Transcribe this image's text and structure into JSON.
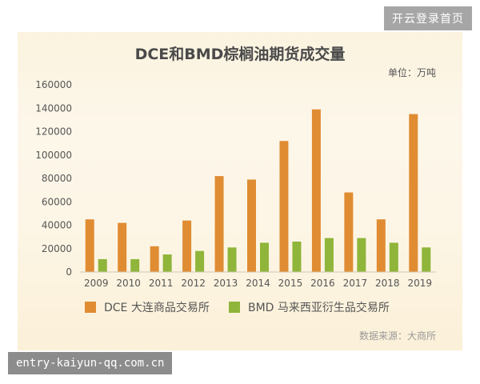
{
  "top_link": "开云登录首页",
  "watermark": "entry-kaiyun-qq.com.cn",
  "unit_label": "单位：万吨",
  "source_label": "数据来源：大商所",
  "colors": {
    "dce": "#e08c33",
    "bmd": "#8fb53a",
    "axis_text": "#555555",
    "title": "#4a4a4a"
  },
  "chart_data": {
    "type": "bar",
    "title": "DCE和BMD棕榈油期货成交量",
    "categories": [
      "2009",
      "2010",
      "2011",
      "2012",
      "2013",
      "2014",
      "2015",
      "2016",
      "2017",
      "2018",
      "2019"
    ],
    "ylim": [
      0,
      160000
    ],
    "yticks": [
      "0",
      "20000",
      "40000",
      "60000",
      "80000",
      "100000",
      "120000",
      "140000",
      "160000"
    ],
    "series": [
      {
        "name": "DCE 大连商品交易所",
        "values": [
          45000,
          42000,
          22000,
          44000,
          82000,
          79000,
          112000,
          139000,
          68000,
          45000,
          135000
        ]
      },
      {
        "name": "BMD 马来西亚衍生品交易所",
        "values": [
          11000,
          11000,
          15000,
          18000,
          21000,
          25000,
          26000,
          29000,
          29000,
          25000,
          21000
        ]
      }
    ],
    "grid": false,
    "legend": "bottom"
  }
}
